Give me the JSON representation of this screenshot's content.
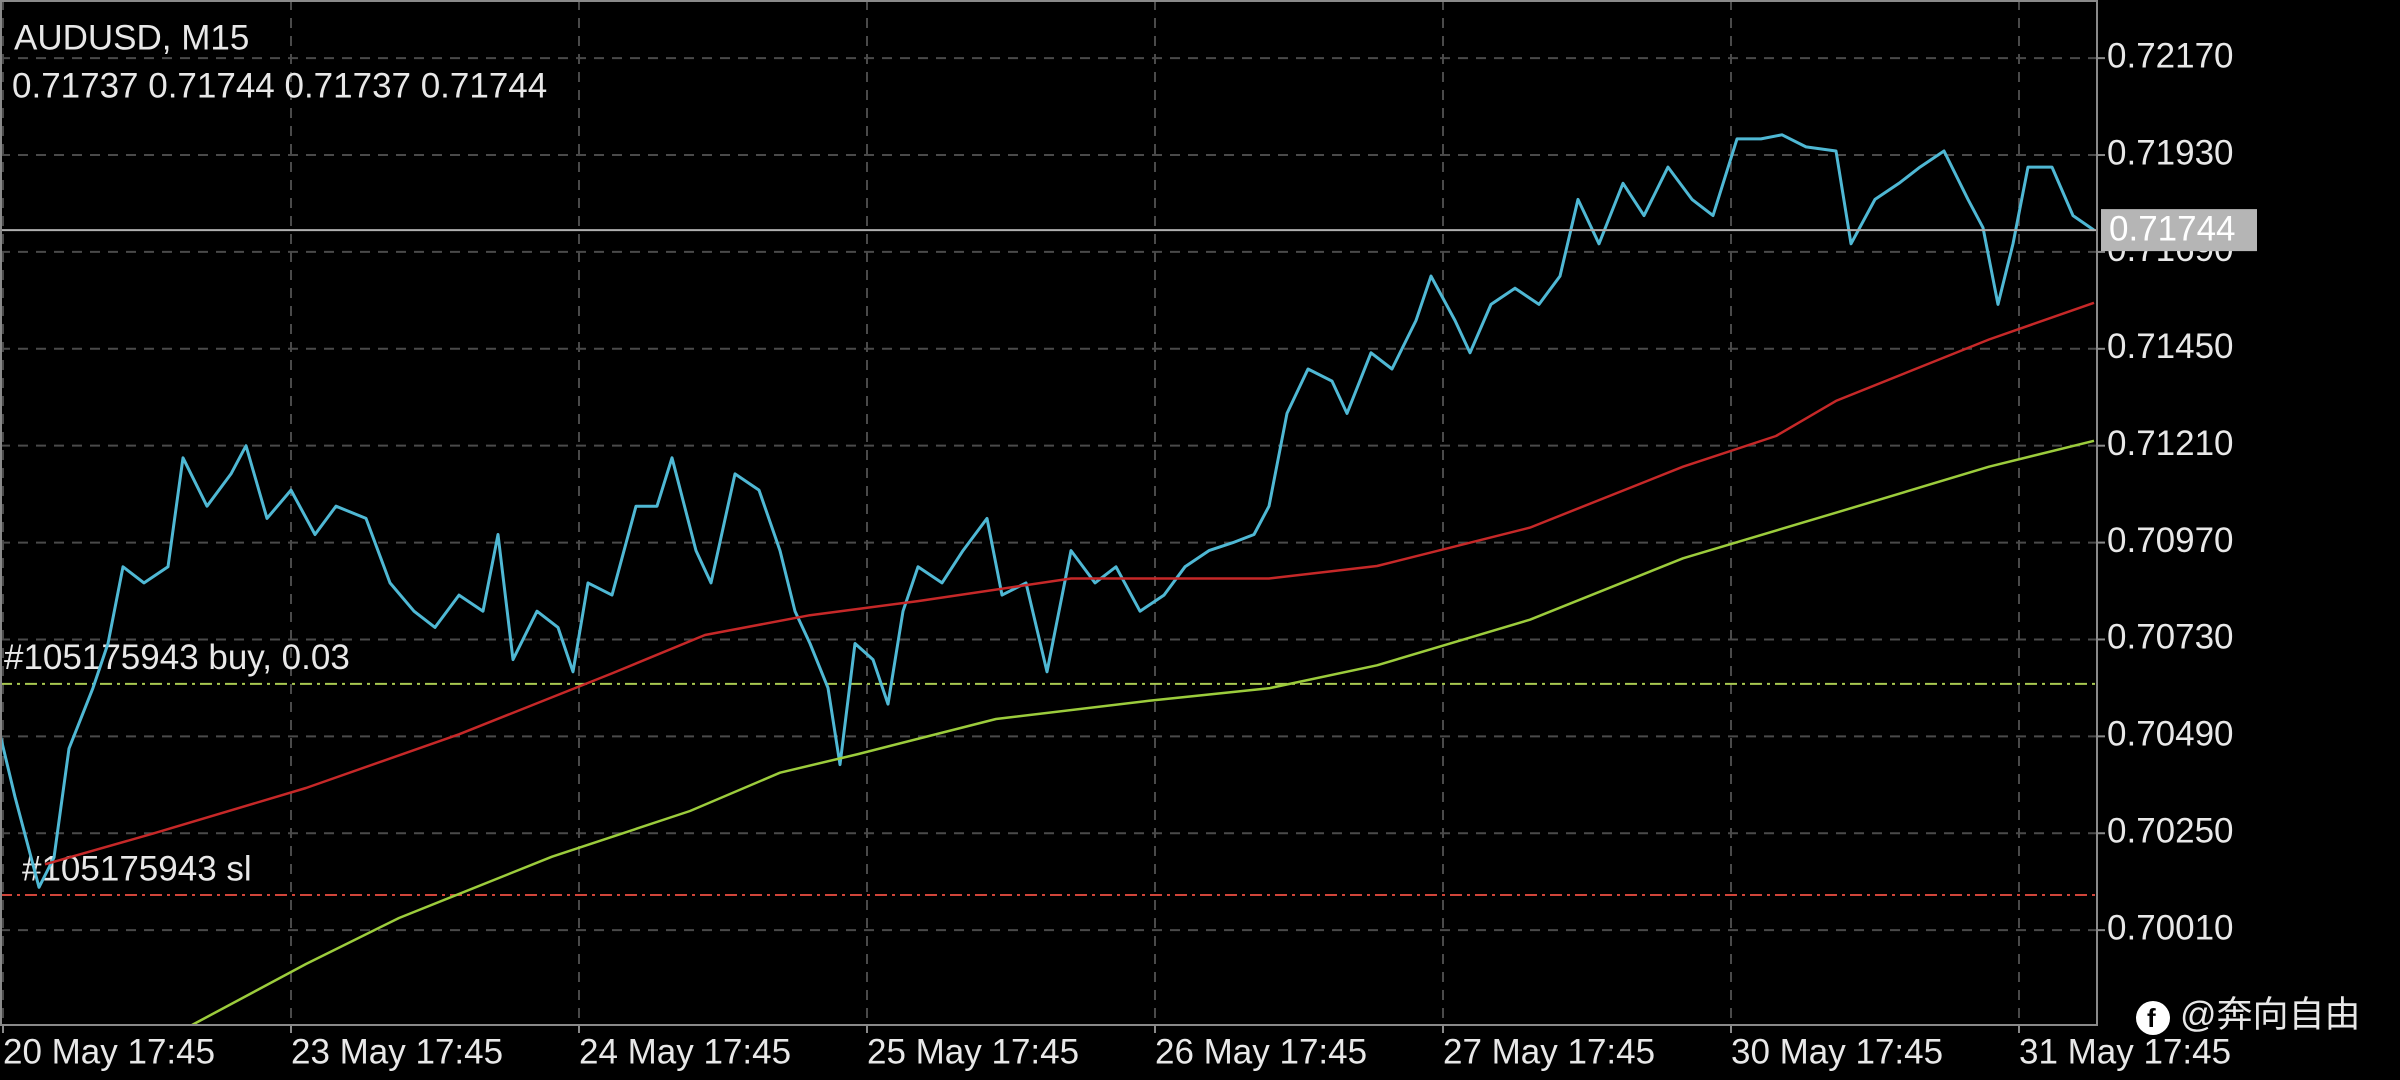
{
  "chart_data": {
    "type": "line",
    "title": "AUDUSD, M15",
    "subtitle": "0.71737 0.71744 0.71737 0.71744",
    "xlim": [
      0,
      699
    ],
    "ylim": [
      0.69775,
      0.72314
    ],
    "xticks": [
      {
        "value": 1,
        "label": "20 May 17:45"
      },
      {
        "value": 97,
        "label": "23 May 17:45"
      },
      {
        "value": 193,
        "label": "24 May 17:45"
      },
      {
        "value": 289,
        "label": "25 May 17:45"
      },
      {
        "value": 385,
        "label": "26 May 17:45"
      },
      {
        "value": 481,
        "label": "27 May 17:45"
      },
      {
        "value": 577,
        "label": "30 May 17:45"
      },
      {
        "value": 673,
        "label": "31 May 17:45"
      }
    ],
    "yticks": [
      {
        "value": 0.7217,
        "label": "0.72170"
      },
      {
        "value": 0.7193,
        "label": "0.71930"
      },
      {
        "value": 0.7169,
        "label": "0.71690"
      },
      {
        "value": 0.7145,
        "label": "0.71450"
      },
      {
        "value": 0.7121,
        "label": "0.71210"
      },
      {
        "value": 0.7097,
        "label": "0.70970"
      },
      {
        "value": 0.7073,
        "label": "0.70730"
      },
      {
        "value": 0.7049,
        "label": "0.70490"
      },
      {
        "value": 0.7025,
        "label": "0.70250"
      },
      {
        "value": 0.7001,
        "label": "0.70010"
      }
    ],
    "grid": true,
    "series": [
      {
        "color": "#4fb8d4",
        "x": [
          0,
          5,
          13,
          18,
          23,
          31,
          36,
          41,
          48,
          56,
          61,
          69,
          77,
          82,
          89,
          97,
          105,
          112,
          122,
          130,
          138,
          145,
          153,
          161,
          166,
          171,
          179,
          186,
          191,
          196,
          204,
          212,
          219,
          224,
          232,
          237,
          245,
          253,
          260,
          265,
          270,
          276,
          280,
          285,
          291,
          296,
          301,
          306,
          314,
          321,
          329,
          334,
          342,
          349,
          357,
          365,
          372,
          380,
          388,
          395,
          403,
          411,
          418,
          423,
          429,
          436,
          444,
          449,
          457,
          464,
          472,
          477,
          485,
          490,
          497,
          505,
          513,
          520,
          526,
          533,
          541,
          548,
          556,
          564,
          571,
          579,
          587,
          594,
          602,
          612,
          617,
          625,
          633,
          640,
          648,
          656,
          661,
          666,
          671,
          676,
          684,
          691,
          698
        ],
        "values": [
          0.70495,
          0.7034,
          0.70116,
          0.7019,
          0.7046,
          0.7061,
          0.7072,
          0.7091,
          0.7087,
          0.7091,
          0.7118,
          0.7106,
          0.7114,
          0.7121,
          0.7103,
          0.711,
          0.7099,
          0.7106,
          0.7103,
          0.7087,
          0.708,
          0.7076,
          0.7084,
          0.708,
          0.7099,
          0.7068,
          0.708,
          0.7076,
          0.7065,
          0.7087,
          0.7084,
          0.7106,
          0.7106,
          0.7118,
          0.7095,
          0.7087,
          0.7114,
          0.711,
          0.7095,
          0.708,
          0.7072,
          0.7061,
          0.7042,
          0.7072,
          0.7068,
          0.7057,
          0.708,
          0.7091,
          0.7087,
          0.7095,
          0.7103,
          0.7084,
          0.7087,
          0.7065,
          0.7095,
          0.7087,
          0.7091,
          0.708,
          0.7084,
          0.7091,
          0.7095,
          0.7097,
          0.7099,
          0.7106,
          0.7129,
          0.714,
          0.7137,
          0.7129,
          0.7144,
          0.714,
          0.7152,
          0.7163,
          0.7152,
          0.7144,
          0.7156,
          0.716,
          0.7156,
          0.7163,
          0.7182,
          0.7171,
          0.7186,
          0.7178,
          0.719,
          0.7182,
          0.7178,
          0.7197,
          0.7197,
          0.7198,
          0.7195,
          0.7194,
          0.7171,
          0.7182,
          0.7186,
          0.719,
          0.7194,
          0.7182,
          0.7175,
          0.7156,
          0.7171,
          0.719,
          0.719,
          0.7178,
          0.71744
        ]
      },
      {
        "color": "#c62828",
        "x": [
          15,
          51,
          102,
          153,
          204,
          235,
          270,
          306,
          357,
          423,
          459,
          510,
          561,
          592,
          612,
          663,
          698
        ],
        "values": [
          0.70173,
          0.70249,
          0.70362,
          0.70495,
          0.70646,
          0.70741,
          0.7079,
          0.70825,
          0.70881,
          0.70881,
          0.70912,
          0.71007,
          0.71158,
          0.71234,
          0.71321,
          0.71473,
          0.71564
        ]
      },
      {
        "color": "#9ccc3c",
        "x": [
          64,
          102,
          133,
          184,
          230,
          260,
          286,
          332,
          383,
          423,
          459,
          510,
          561,
          612,
          663,
          698
        ],
        "values": [
          0.69775,
          0.69926,
          0.7004,
          0.70192,
          0.70305,
          0.704,
          0.70446,
          0.70533,
          0.70578,
          0.70609,
          0.70666,
          0.70779,
          0.70931,
          0.71044,
          0.71158,
          0.71222
        ]
      }
    ],
    "levels": [
      {
        "label": "#105175943 buy, 0.03",
        "value": 0.7062,
        "color": "#a8c850"
      },
      {
        "label": "#105175943 sl",
        "value": 0.70097,
        "color": "#d0453a"
      }
    ],
    "last_price": 0.71744,
    "watermark": "@奔向自由"
  }
}
